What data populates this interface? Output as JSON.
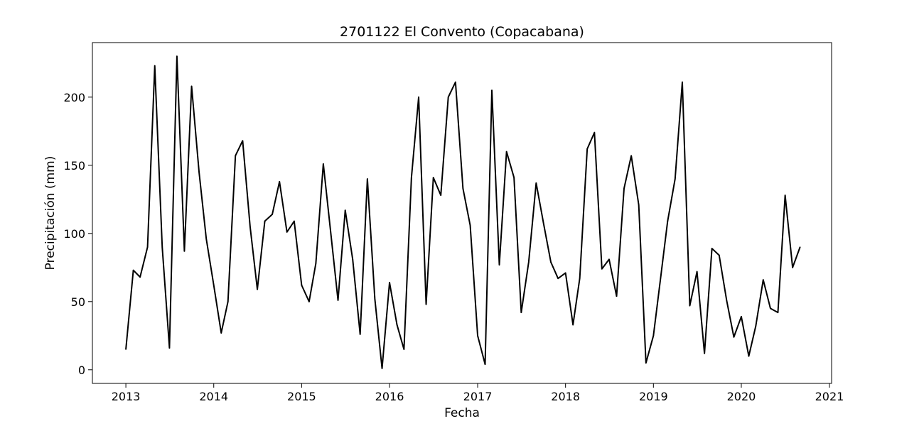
{
  "chart_data": {
    "type": "line",
    "title": "2701122 El Convento (Copacabana)",
    "xlabel": "Fecha",
    "ylabel": "Precipitación (mm)",
    "xlim": [
      "2012-08-15",
      "2021-01-10"
    ],
    "ylim": [
      -10,
      240
    ],
    "grid": false,
    "legend": "none",
    "line_color": "#000000",
    "x_ticks": [
      "2013-01-01",
      "2014-01-01",
      "2015-01-01",
      "2016-01-01",
      "2017-01-01",
      "2018-01-01",
      "2019-01-01",
      "2020-01-01",
      "2021-01-01"
    ],
    "x_tick_labels": [
      "2013",
      "2014",
      "2015",
      "2016",
      "2017",
      "2018",
      "2019",
      "2020",
      "2021"
    ],
    "y_ticks": [
      0,
      50,
      100,
      150,
      200
    ],
    "y_tick_labels": [
      "0",
      "50",
      "100",
      "150",
      "200"
    ],
    "series": [
      {
        "x": [
          "2013-01",
          "2013-02",
          "2013-03",
          "2013-04",
          "2013-05",
          "2013-06",
          "2013-07",
          "2013-08",
          "2013-09",
          "2013-10",
          "2013-11",
          "2013-12",
          "2014-01",
          "2014-02",
          "2014-03",
          "2014-04",
          "2014-05",
          "2014-06",
          "2014-07",
          "2014-08",
          "2014-09",
          "2014-10",
          "2014-11",
          "2014-12",
          "2015-01",
          "2015-02",
          "2015-03",
          "2015-04",
          "2015-05",
          "2015-06",
          "2015-07",
          "2015-08",
          "2015-09",
          "2015-10",
          "2015-11",
          "2015-12",
          "2016-01",
          "2016-02",
          "2016-03",
          "2016-04",
          "2016-05",
          "2016-06",
          "2016-07",
          "2016-08",
          "2016-09",
          "2016-10",
          "2016-11",
          "2016-12",
          "2017-01",
          "2017-02",
          "2017-03",
          "2017-04",
          "2017-05",
          "2017-06",
          "2017-07",
          "2017-08",
          "2017-09",
          "2017-10",
          "2017-11",
          "2017-12",
          "2018-01",
          "2018-02",
          "2018-03",
          "2018-04",
          "2018-05",
          "2018-06",
          "2018-07",
          "2018-08",
          "2018-09",
          "2018-10",
          "2018-11",
          "2018-12",
          "2019-01",
          "2019-02",
          "2019-03",
          "2019-04",
          "2019-05",
          "2019-06",
          "2019-07",
          "2019-08",
          "2019-09",
          "2019-10",
          "2019-11",
          "2019-12",
          "2020-01",
          "2020-02",
          "2020-03",
          "2020-04",
          "2020-05",
          "2020-06",
          "2020-07",
          "2020-08",
          "2020-09"
        ],
        "values": [
          15,
          73,
          68,
          90,
          223,
          90,
          16,
          230,
          87,
          208,
          145,
          96,
          62,
          27,
          50,
          157,
          168,
          105,
          59,
          109,
          114,
          138,
          101,
          109,
          62,
          50,
          78,
          151,
          102,
          51,
          117,
          81,
          26,
          140,
          52,
          1,
          64,
          33,
          15,
          141,
          200,
          48,
          141,
          128,
          200,
          211,
          133,
          106,
          25,
          4,
          205,
          77,
          160,
          141,
          42,
          79,
          137,
          108,
          79,
          67,
          71,
          33,
          67,
          162,
          174,
          74,
          81,
          54,
          133,
          157,
          121,
          5,
          25,
          69,
          109,
          140,
          211,
          47,
          72,
          12,
          89,
          84,
          51,
          24,
          39,
          10,
          32,
          66,
          45,
          42,
          128,
          75,
          90
        ]
      }
    ]
  }
}
